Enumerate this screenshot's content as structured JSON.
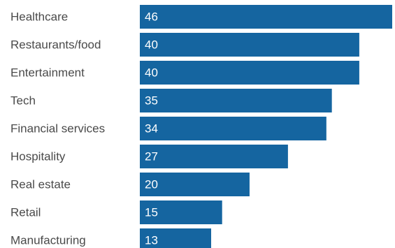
{
  "chart_data": {
    "type": "bar",
    "orientation": "horizontal",
    "categories": [
      "Healthcare",
      "Restaurants/food",
      "Entertainment",
      "Tech",
      "Financial services",
      "Hospitality",
      "Real estate",
      "Retail",
      "Manufacturing"
    ],
    "values": [
      46,
      40,
      40,
      35,
      34,
      27,
      20,
      15,
      13
    ],
    "title": "",
    "xlabel": "",
    "ylabel": "",
    "xlim": [
      0,
      46
    ],
    "grid": false,
    "bar_color": "#1565a0",
    "label_color": "#4a4a4a",
    "value_label_color": "#ffffff"
  }
}
